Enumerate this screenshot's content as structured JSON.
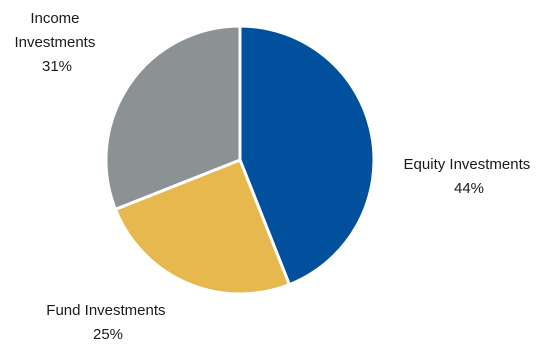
{
  "chart_data": {
    "type": "pie",
    "slices": [
      {
        "label": "Equity Investments",
        "value": 44,
        "value_label": "44%",
        "color": "#00509E"
      },
      {
        "label": "Fund Investments",
        "value": 25,
        "value_label": "25%",
        "color": "#E6B84E"
      },
      {
        "label": "Income Investments",
        "value": 31,
        "value_label": "31%",
        "color": "#8C9193"
      }
    ],
    "start_angle": "12 o'clock",
    "direction": "clockwise",
    "slice_separator_color": "#FFFFFF"
  }
}
